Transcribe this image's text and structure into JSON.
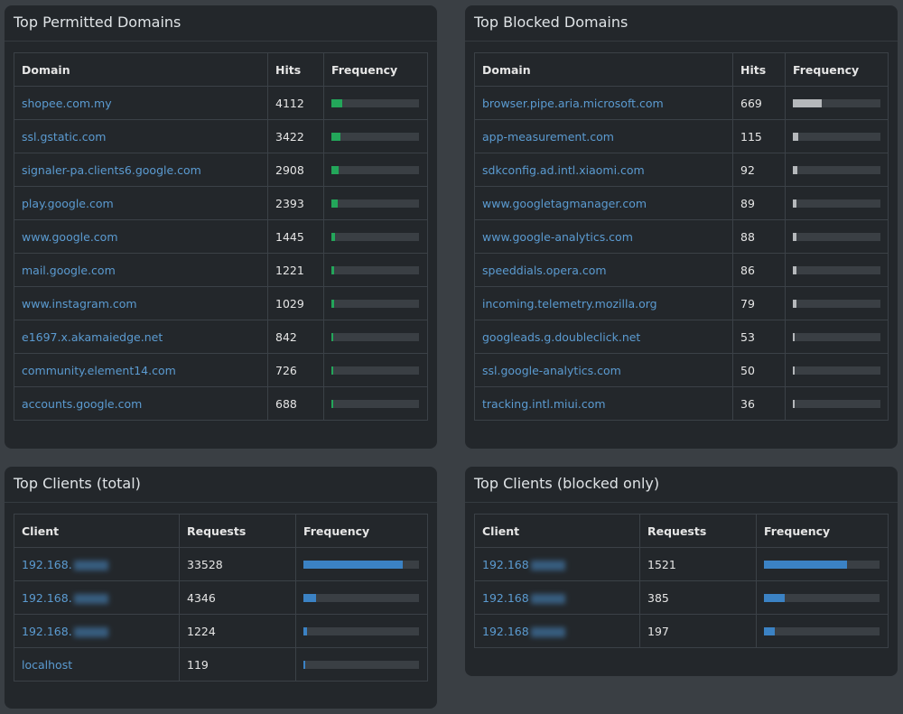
{
  "permitted": {
    "title": "Top Permitted Domains",
    "col_domain": "Domain",
    "col_hits": "Hits",
    "col_freq": "Frequency",
    "rows": [
      {
        "domain": "shopee.com.my",
        "hits": "4112",
        "freq": 0.12
      },
      {
        "domain": "ssl.gstatic.com",
        "hits": "3422",
        "freq": 0.1
      },
      {
        "domain": "signaler-pa.clients6.google.com",
        "hits": "2908",
        "freq": 0.085
      },
      {
        "domain": "play.google.com",
        "hits": "2393",
        "freq": 0.07
      },
      {
        "domain": "www.google.com",
        "hits": "1445",
        "freq": 0.04
      },
      {
        "domain": "mail.google.com",
        "hits": "1221",
        "freq": 0.035
      },
      {
        "domain": "www.instagram.com",
        "hits": "1029",
        "freq": 0.03
      },
      {
        "domain": "e1697.x.akamaiedge.net",
        "hits": "842",
        "freq": 0.025
      },
      {
        "domain": "community.element14.com",
        "hits": "726",
        "freq": 0.02
      },
      {
        "domain": "accounts.google.com",
        "hits": "688",
        "freq": 0.02
      }
    ]
  },
  "blocked": {
    "title": "Top Blocked Domains",
    "col_domain": "Domain",
    "col_hits": "Hits",
    "col_freq": "Frequency",
    "rows": [
      {
        "domain": "browser.pipe.aria.microsoft.com",
        "hits": "669",
        "freq": 0.33
      },
      {
        "domain": "app-measurement.com",
        "hits": "115",
        "freq": 0.06
      },
      {
        "domain": "sdkconfig.ad.intl.xiaomi.com",
        "hits": "92",
        "freq": 0.05
      },
      {
        "domain": "www.googletagmanager.com",
        "hits": "89",
        "freq": 0.045
      },
      {
        "domain": "www.google-analytics.com",
        "hits": "88",
        "freq": 0.045
      },
      {
        "domain": "speeddials.opera.com",
        "hits": "86",
        "freq": 0.045
      },
      {
        "domain": "incoming.telemetry.mozilla.org",
        "hits": "79",
        "freq": 0.04
      },
      {
        "domain": "googleads.g.doubleclick.net",
        "hits": "53",
        "freq": 0.025
      },
      {
        "domain": "ssl.google-analytics.com",
        "hits": "50",
        "freq": 0.025
      },
      {
        "domain": "tracking.intl.miui.com",
        "hits": "36",
        "freq": 0.02
      }
    ]
  },
  "clients_total": {
    "title": "Top Clients (total)",
    "col_client": "Client",
    "col_requests": "Requests",
    "col_freq": "Frequency",
    "rows": [
      {
        "client": "192.168.",
        "blurred": true,
        "requests": "33528",
        "freq": 0.86
      },
      {
        "client": "192.168.",
        "blurred": true,
        "requests": "4346",
        "freq": 0.11
      },
      {
        "client": "192.168.",
        "blurred": true,
        "requests": "1224",
        "freq": 0.03
      },
      {
        "client": "localhost",
        "blurred": false,
        "requests": "119",
        "freq": 0.005
      }
    ]
  },
  "clients_blocked": {
    "title": "Top Clients (blocked only)",
    "col_client": "Client",
    "col_requests": "Requests",
    "col_freq": "Frequency",
    "rows": [
      {
        "client": "192.168",
        "blurred": true,
        "requests": "1521",
        "freq": 0.72
      },
      {
        "client": "192.168",
        "blurred": true,
        "requests": "385",
        "freq": 0.18
      },
      {
        "client": "192.168",
        "blurred": true,
        "requests": "197",
        "freq": 0.09
      }
    ]
  },
  "colors": {
    "permitted_bar": "#23a65a",
    "blocked_bar": "#b5b8bb",
    "client_bar": "#3b82c4",
    "link": "#5b9bd1"
  }
}
